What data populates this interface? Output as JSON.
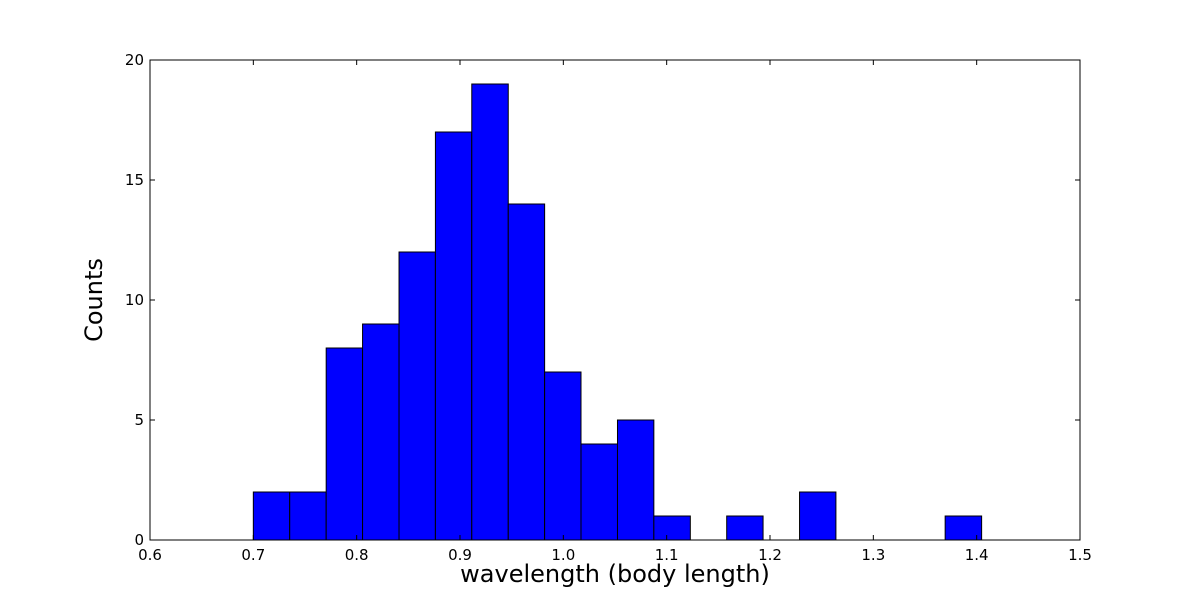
{
  "chart_data": {
    "type": "bar",
    "title": "",
    "xlabel": "wavelength (body length)",
    "ylabel": "Counts",
    "xlim": [
      0.6,
      1.5
    ],
    "ylim": [
      0,
      20
    ],
    "xticks": [
      "0.6",
      "0.7",
      "0.8",
      "0.9",
      "1.0",
      "1.1",
      "1.2",
      "1.3",
      "1.4",
      "1.5"
    ],
    "yticks": [
      "0",
      "5",
      "10",
      "15",
      "20"
    ],
    "bin_edges": [
      0.7,
      0.7352,
      0.7705,
      0.8057,
      0.841,
      0.8762,
      0.9114,
      0.9467,
      0.9819,
      1.0171,
      1.0524,
      1.0876,
      1.1229,
      1.1581,
      1.1933,
      1.2286,
      1.2638,
      1.299,
      1.3343,
      1.3695,
      1.4048
    ],
    "values": [
      2,
      2,
      8,
      9,
      12,
      17,
      19,
      14,
      7,
      4,
      5,
      1,
      0,
      1,
      0,
      2,
      0,
      0,
      0,
      1
    ],
    "bar_color": "#0000ff",
    "edge_color": "#000000",
    "grid": false,
    "legend": "none"
  }
}
